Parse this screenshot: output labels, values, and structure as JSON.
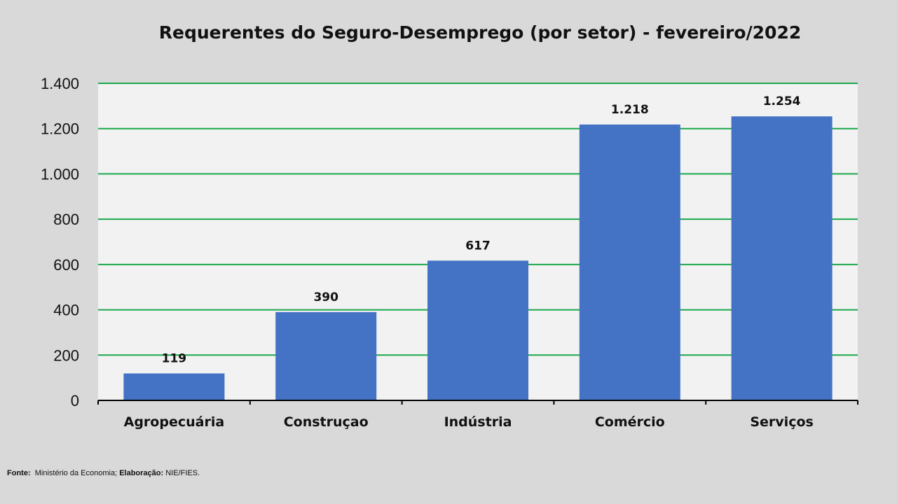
{
  "chart_data": {
    "type": "bar",
    "title": "Requerentes do Seguro-Desemprego (por setor) - fevereiro/2022",
    "categories": [
      "Agropecuária",
      "Construçao",
      "Indústria",
      "Comércio",
      "Serviços"
    ],
    "values": [
      119,
      390,
      617,
      1218,
      1254
    ],
    "value_labels": [
      "119",
      "390",
      "617",
      "1.218",
      "1.254"
    ],
    "ylim": [
      0,
      1400
    ],
    "yticks": [
      0,
      200,
      400,
      600,
      800,
      1000,
      1200,
      1400
    ],
    "ytick_labels": [
      "0",
      "200",
      "400",
      "600",
      "800",
      "1.000",
      "1.200",
      "1.400"
    ],
    "xlabel": "",
    "ylabel": "",
    "grid": true,
    "legend": "none",
    "colors": {
      "bar": "#4472c4",
      "grid": "#1aa84b",
      "plot_background": "#f2f2f2",
      "page_background": "#d9d9d9"
    }
  },
  "footer": {
    "source_label": "Fonte:",
    "source_text": "Ministério da Economia;",
    "elaboration_label": "Elaboração:",
    "elaboration_text": "NIE/FIES."
  }
}
